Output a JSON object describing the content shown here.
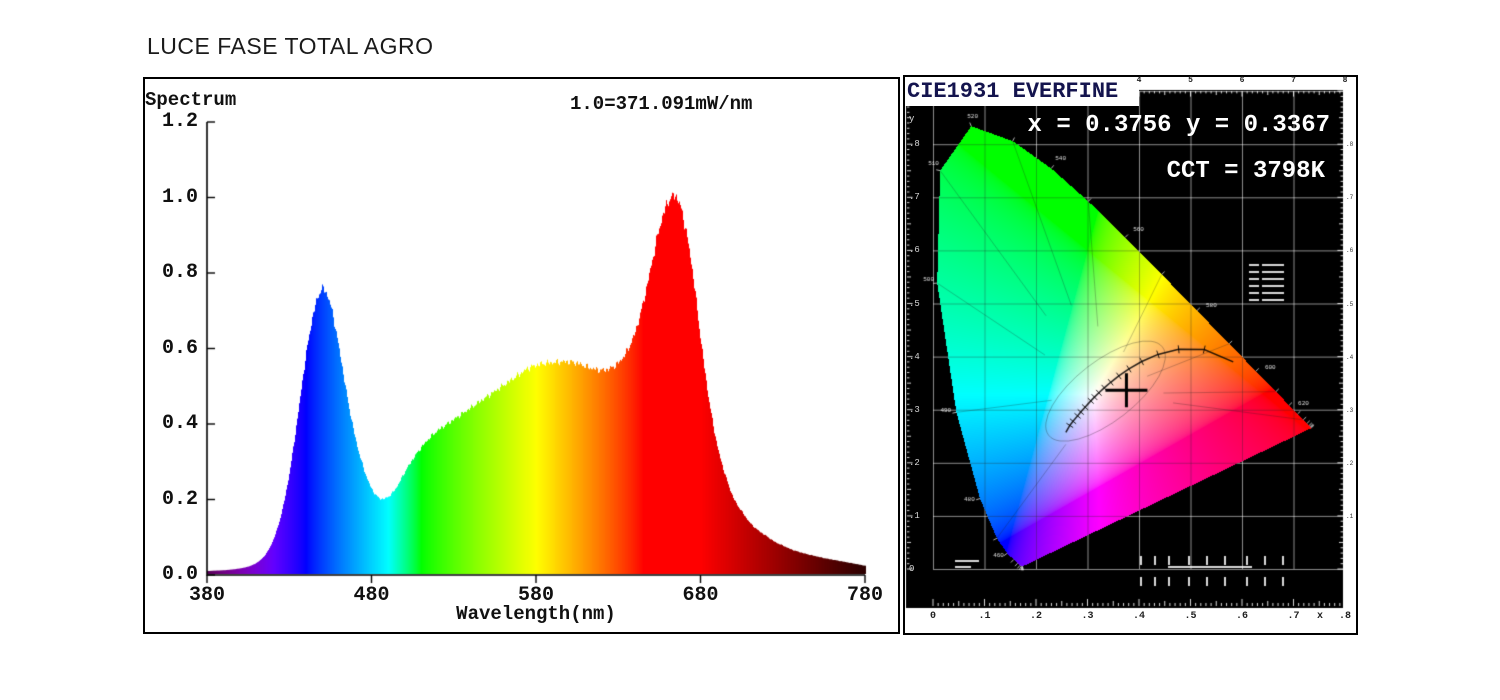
{
  "page": {
    "title": "LUCE FASE TOTAL AGRO"
  },
  "spectrum_panel": {
    "corner_label": "Spectrum",
    "scale_label": "1.0=371.091mW/nm",
    "x_axis_label": "Wavelength(nm)",
    "x_tick_labels": [
      "380",
      "480",
      "580",
      "680",
      "780"
    ],
    "y_tick_labels": [
      "1.2",
      "1.0",
      "0.8",
      "0.6",
      "0.4",
      "0.2",
      "0.0"
    ]
  },
  "cie_panel": {
    "title": "CIE1931 EVERFINE",
    "xy_label": "x = 0.3756 y = 0.3367",
    "cct_label": "CCT = 3798K",
    "bottom_axis_labels": [
      "0",
      ".1",
      ".2",
      ".3",
      ".4",
      ".5",
      ".6",
      ".7",
      "x",
      ".8"
    ],
    "top_axis_labels": [
      "4",
      "5",
      "6",
      "7",
      "8"
    ],
    "left_axis_labels": [
      "y",
      ".8",
      ".7",
      ".6",
      ".5",
      ".4",
      ".3",
      ".2",
      ".1",
      "0"
    ],
    "right_axis_labels": [
      ".8",
      ".7",
      ".6",
      ".5",
      ".4",
      ".3",
      ".2",
      ".1"
    ]
  },
  "chart_data": [
    {
      "type": "area",
      "title": "Spectrum",
      "scale_note": "1.0=371.091mW/nm",
      "xlabel": "Wavelength(nm)",
      "x_range": [
        380,
        780
      ],
      "y_range": [
        0,
        1.2
      ],
      "x_ticks": [
        380,
        480,
        580,
        680,
        780
      ],
      "y_ticks": [
        0.0,
        0.2,
        0.4,
        0.6,
        0.8,
        1.0,
        1.2
      ],
      "color_mapping": "visible-spectrum-rainbow",
      "x": [
        380,
        385,
        390,
        395,
        400,
        405,
        410,
        415,
        420,
        425,
        430,
        435,
        440,
        445,
        450,
        455,
        460,
        465,
        470,
        475,
        480,
        485,
        490,
        495,
        500,
        505,
        510,
        515,
        520,
        525,
        530,
        535,
        540,
        545,
        550,
        555,
        560,
        565,
        570,
        575,
        580,
        585,
        590,
        595,
        600,
        605,
        610,
        615,
        620,
        625,
        630,
        635,
        640,
        645,
        650,
        655,
        660,
        665,
        670,
        675,
        680,
        685,
        690,
        695,
        700,
        705,
        710,
        715,
        720,
        725,
        730,
        735,
        740,
        745,
        750,
        755,
        760,
        765,
        770,
        775,
        780
      ],
      "values": [
        0.008,
        0.009,
        0.01,
        0.012,
        0.015,
        0.02,
        0.03,
        0.05,
        0.09,
        0.16,
        0.27,
        0.42,
        0.58,
        0.7,
        0.755,
        0.71,
        0.6,
        0.47,
        0.36,
        0.28,
        0.225,
        0.2,
        0.205,
        0.23,
        0.27,
        0.305,
        0.335,
        0.36,
        0.38,
        0.395,
        0.41,
        0.425,
        0.44,
        0.455,
        0.47,
        0.485,
        0.5,
        0.515,
        0.53,
        0.545,
        0.553,
        0.558,
        0.56,
        0.562,
        0.562,
        0.558,
        0.55,
        0.543,
        0.54,
        0.545,
        0.56,
        0.59,
        0.64,
        0.72,
        0.82,
        0.92,
        0.985,
        1.0,
        0.93,
        0.8,
        0.62,
        0.46,
        0.34,
        0.26,
        0.2,
        0.165,
        0.135,
        0.115,
        0.1,
        0.085,
        0.075,
        0.065,
        0.058,
        0.052,
        0.047,
        0.042,
        0.038,
        0.034,
        0.03,
        0.026,
        0.022
      ],
      "peaks": {
        "blue_peak_nm": 450,
        "blue_peak_value": 0.755,
        "red_peak_nm": 665,
        "red_peak_value": 1.0
      }
    },
    {
      "type": "scatter",
      "title": "CIE1931 EVERFINE",
      "xlabel": "x",
      "ylabel": "y",
      "x_range": [
        0,
        0.8
      ],
      "y_range": [
        0,
        0.9
      ],
      "grid_step": 0.1,
      "points": [
        {
          "x": 0.3756,
          "y": 0.3367
        }
      ],
      "cct_k": 3798
    }
  ]
}
